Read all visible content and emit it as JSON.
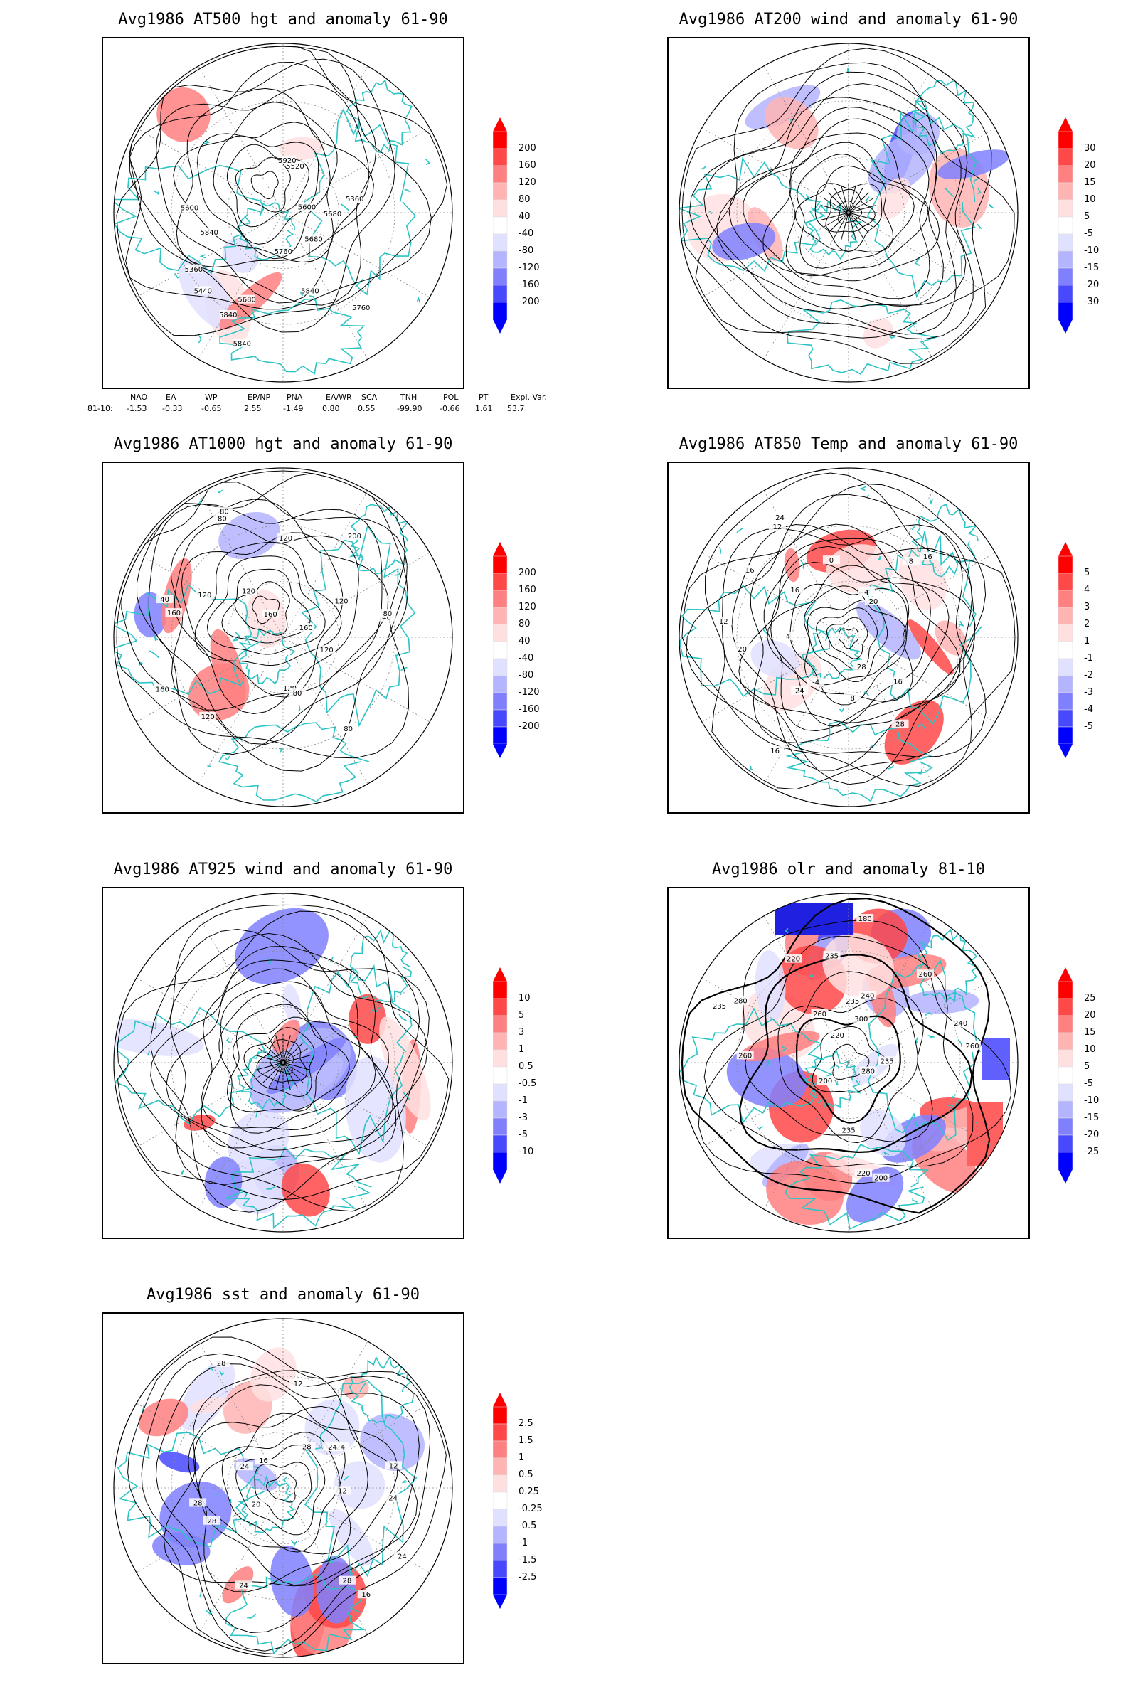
{
  "panels": [
    {
      "id": "p500",
      "title": "Avg1986 AT500 hgt and anomaly 61-90",
      "colorbar": {
        "labels": [
          "200",
          "160",
          "120",
          "80",
          "40",
          "-40",
          "-80",
          "-120",
          "-160",
          "-200"
        ]
      },
      "contour_labels": [
        "5840",
        "5760",
        "5680",
        "5600",
        "5360",
        "5360",
        "5440",
        "5520",
        "5600",
        "5680",
        "5760",
        "5840",
        "5920",
        "5840",
        "5840",
        "5680"
      ],
      "field_style": "hgt"
    },
    {
      "id": "p200",
      "title": "Avg1986 AT200 wind and anomaly 61-90",
      "colorbar": {
        "labels": [
          "30",
          "20",
          "15",
          "10",
          "5",
          "-5",
          "-10",
          "-15",
          "-20",
          "-30"
        ]
      },
      "contour_labels": [],
      "field_style": "wind"
    },
    {
      "id": "p1000",
      "title": "Avg1986 AT1000 hgt and anomaly 61-90",
      "colorbar": {
        "labels": [
          "200",
          "160",
          "120",
          "80",
          "40",
          "-40",
          "-80",
          "-120",
          "-160",
          "-200"
        ]
      },
      "contour_labels": [
        "120",
        "200",
        "160",
        "120",
        "40",
        "80",
        "120",
        "160",
        "80",
        "120",
        "80",
        "160",
        "120",
        "40",
        "80",
        "120",
        "80",
        "160",
        "120"
      ],
      "field_style": "hgt"
    },
    {
      "id": "p850",
      "title": "Avg1986 AT850 Temp and anomaly 61-90",
      "colorbar": {
        "labels": [
          "5",
          "4",
          "3",
          "2",
          "1",
          "-1",
          "-2",
          "-3",
          "-4",
          "-5"
        ]
      },
      "contour_labels": [
        "16",
        "16",
        "12",
        "8",
        "4",
        "24",
        "20",
        "-4",
        "0",
        "4",
        "8",
        "12",
        "20",
        "24",
        "28",
        "28",
        "16",
        "16",
        "16"
      ],
      "field_style": "temp"
    },
    {
      "id": "p925",
      "title": "Avg1986 AT925 wind and anomaly 61-90",
      "colorbar": {
        "labels": [
          "10",
          "5",
          "3",
          "1",
          "0.5",
          "-0.5",
          "-1",
          "-3",
          "-5",
          "-10"
        ]
      },
      "contour_labels": [],
      "field_style": "wind925"
    },
    {
      "id": "polr",
      "title": "Avg1986 olr and anomaly 81-10",
      "colorbar": {
        "labels": [
          "25",
          "20",
          "15",
          "10",
          "5",
          "-5",
          "-10",
          "-15",
          "-20",
          "-25"
        ]
      },
      "contour_labels": [
        "235",
        "240",
        "260",
        "200",
        "220",
        "235",
        "280",
        "260",
        "240",
        "235",
        "220",
        "200",
        "180",
        "235",
        "260",
        "280",
        "300",
        "220",
        "235",
        "260"
      ],
      "field_style": "olr"
    },
    {
      "id": "psst",
      "title": "Avg1986 sst and anomaly 61-90",
      "colorbar": {
        "labels": [
          "2.5",
          "1.5",
          "1",
          "0.5",
          "0.25",
          "-0.25",
          "-0.5",
          "-1",
          "-1.5",
          "-2.5"
        ]
      },
      "contour_labels": [
        "28",
        "24",
        "20",
        "16",
        "12",
        "12",
        "24",
        "28",
        "28",
        "24",
        "28",
        "16",
        "12",
        "24",
        "24",
        "28",
        "24"
      ],
      "field_style": "sst"
    }
  ],
  "indices": {
    "headers": [
      "NAO",
      "EA",
      "WP",
      "EP/NP",
      "PNA",
      "EA/WR",
      "SCA",
      "TNH",
      "POL",
      "PT",
      "Expl. Var."
    ],
    "row_label": "81-10:",
    "values": [
      "-1.53",
      "-0.33",
      "-0.65",
      "2.55",
      "-1.49",
      "0.80",
      "0.55",
      "-99.90",
      "-0.66",
      "1.61",
      "53.7"
    ]
  },
  "colors": {
    "frame": "#000000",
    "coast": "#2cc4c4",
    "contour": "#000000",
    "grid": "#888888",
    "colorbar": [
      "#ff0000",
      "#ff4848",
      "#ff8080",
      "#ffb4b4",
      "#ffe0e0",
      "#ffffff",
      "#e0e0ff",
      "#b4b4ff",
      "#8080ff",
      "#4848ff",
      "#0000ff"
    ]
  }
}
